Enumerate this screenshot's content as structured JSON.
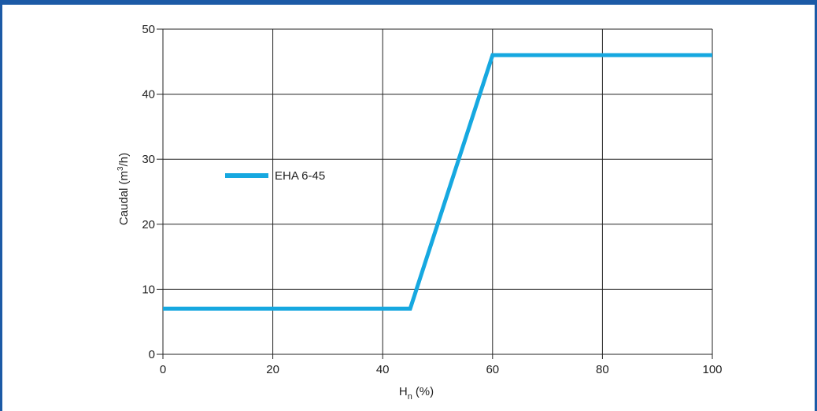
{
  "chart_data": {
    "type": "line",
    "title": "",
    "xlabel": {
      "main": "H",
      "sub": "n",
      "unit": "(%)"
    },
    "ylabel": {
      "pre": "Caudal (m",
      "sup": "3",
      "post": "/h)"
    },
    "xlim": [
      0,
      100
    ],
    "ylim": [
      0,
      50
    ],
    "xticks": [
      0,
      20,
      40,
      60,
      80,
      100
    ],
    "yticks": [
      0,
      10,
      20,
      30,
      40,
      50
    ],
    "grid": true,
    "legend_position": "left-center",
    "series": [
      {
        "name": "EHA 6-45",
        "color": "#16a8e0",
        "x": [
          0,
          45,
          60,
          100
        ],
        "y": [
          7,
          7,
          46,
          46
        ]
      }
    ]
  },
  "colors": {
    "frame": "#1c5aa6",
    "grid": "#222222",
    "series": "#16a8e0"
  }
}
